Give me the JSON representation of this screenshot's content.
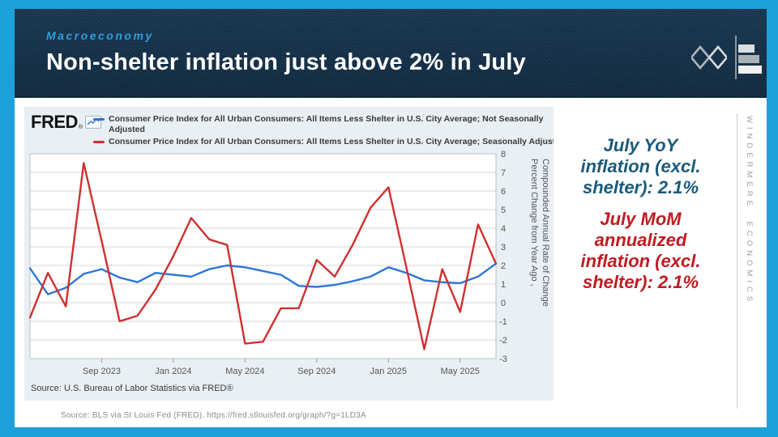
{
  "slide": {
    "kicker": "Macroeconomy",
    "title": "Non-shelter inflation just above 2% in July",
    "footer_source": "Source: BLS via St Louis Fed (FRED). https://fred.stlouisfed.org/graph/?g=1LD3A",
    "brand_vertical": "WINDERMERE ECONOMICS"
  },
  "fred": {
    "logo": "FRED",
    "reg": "®"
  },
  "callouts": {
    "yoy_lines": [
      "July YoY",
      "inflation (excl.",
      "shelter): 2.1%"
    ],
    "mom_lines": [
      "July MoM",
      "annualized",
      "inflation (excl.",
      "shelter): 2.1%"
    ],
    "yoy_value": "2.1%",
    "mom_value": "2.1%"
  },
  "colors": {
    "frame_blue": "#1da1db",
    "header_navy": "#14314b",
    "kicker_blue": "#2e9fe0",
    "callout_blue": "#1a5a7c",
    "callout_red": "#c11b21",
    "line_blue": "#2e76d6",
    "line_red": "#ce3130"
  },
  "chart_data": {
    "type": "line",
    "title": "",
    "x": [
      "May 2023",
      "Jun 2023",
      "Jul 2023",
      "Aug 2023",
      "Sep 2023",
      "Oct 2023",
      "Nov 2023",
      "Dec 2023",
      "Jan 2024",
      "Feb 2024",
      "Mar 2024",
      "Apr 2024",
      "May 2024",
      "Jun 2024",
      "Jul 2024",
      "Aug 2024",
      "Sep 2024",
      "Oct 2024",
      "Nov 2024",
      "Dec 2024",
      "Jan 2025",
      "Feb 2025",
      "Mar 2025",
      "Apr 2025",
      "May 2025",
      "Jun 2025",
      "Jul 2025"
    ],
    "series": [
      {
        "name": "Consumer Price Index for All Urban Consumers: All Items Less Shelter in U.S. City Average; Not Seasonally Adjusted",
        "color": "#2e76d6",
        "values": [
          1.85,
          0.45,
          0.8,
          1.55,
          1.8,
          1.35,
          1.1,
          1.6,
          1.5,
          1.4,
          1.8,
          2.0,
          1.9,
          1.7,
          1.5,
          0.9,
          0.85,
          0.95,
          1.15,
          1.4,
          1.9,
          1.6,
          1.2,
          1.1,
          1.05,
          1.4,
          2.1
        ]
      },
      {
        "name": "Consumer Price Index for All Urban Consumers: All Items Less Shelter in U.S. City Average; Seasonally Adjusted",
        "color": "#ce3130",
        "values": [
          -0.8,
          1.6,
          -0.2,
          7.5,
          3.3,
          -1.0,
          -0.7,
          0.7,
          2.5,
          4.55,
          3.4,
          3.1,
          -2.2,
          -2.1,
          -0.3,
          -0.3,
          2.3,
          1.4,
          3.1,
          5.1,
          6.2,
          1.9,
          -2.5,
          1.8,
          -0.5,
          4.2,
          2.1
        ]
      }
    ],
    "xlabel": "",
    "ylabel_lines": [
      "Percent Change from Year Ago ,",
      "Compounded Annual Rate of Change"
    ],
    "ylim": [
      -3,
      8
    ],
    "yticks": [
      8,
      7,
      6,
      5,
      4,
      3,
      2,
      1,
      0,
      -1,
      -2,
      -3
    ],
    "xticks": [
      {
        "index": 4,
        "label": "Sep 2023"
      },
      {
        "index": 8,
        "label": "Jan 2024"
      },
      {
        "index": 12,
        "label": "May 2024"
      },
      {
        "index": 16,
        "label": "Sep 2024"
      },
      {
        "index": 20,
        "label": "Jan 2025"
      },
      {
        "index": 24,
        "label": "May 2025"
      }
    ],
    "grid": true,
    "legend_position": "top",
    "source_note": "Source: U.S. Bureau of Labor Statistics via FRED®"
  }
}
